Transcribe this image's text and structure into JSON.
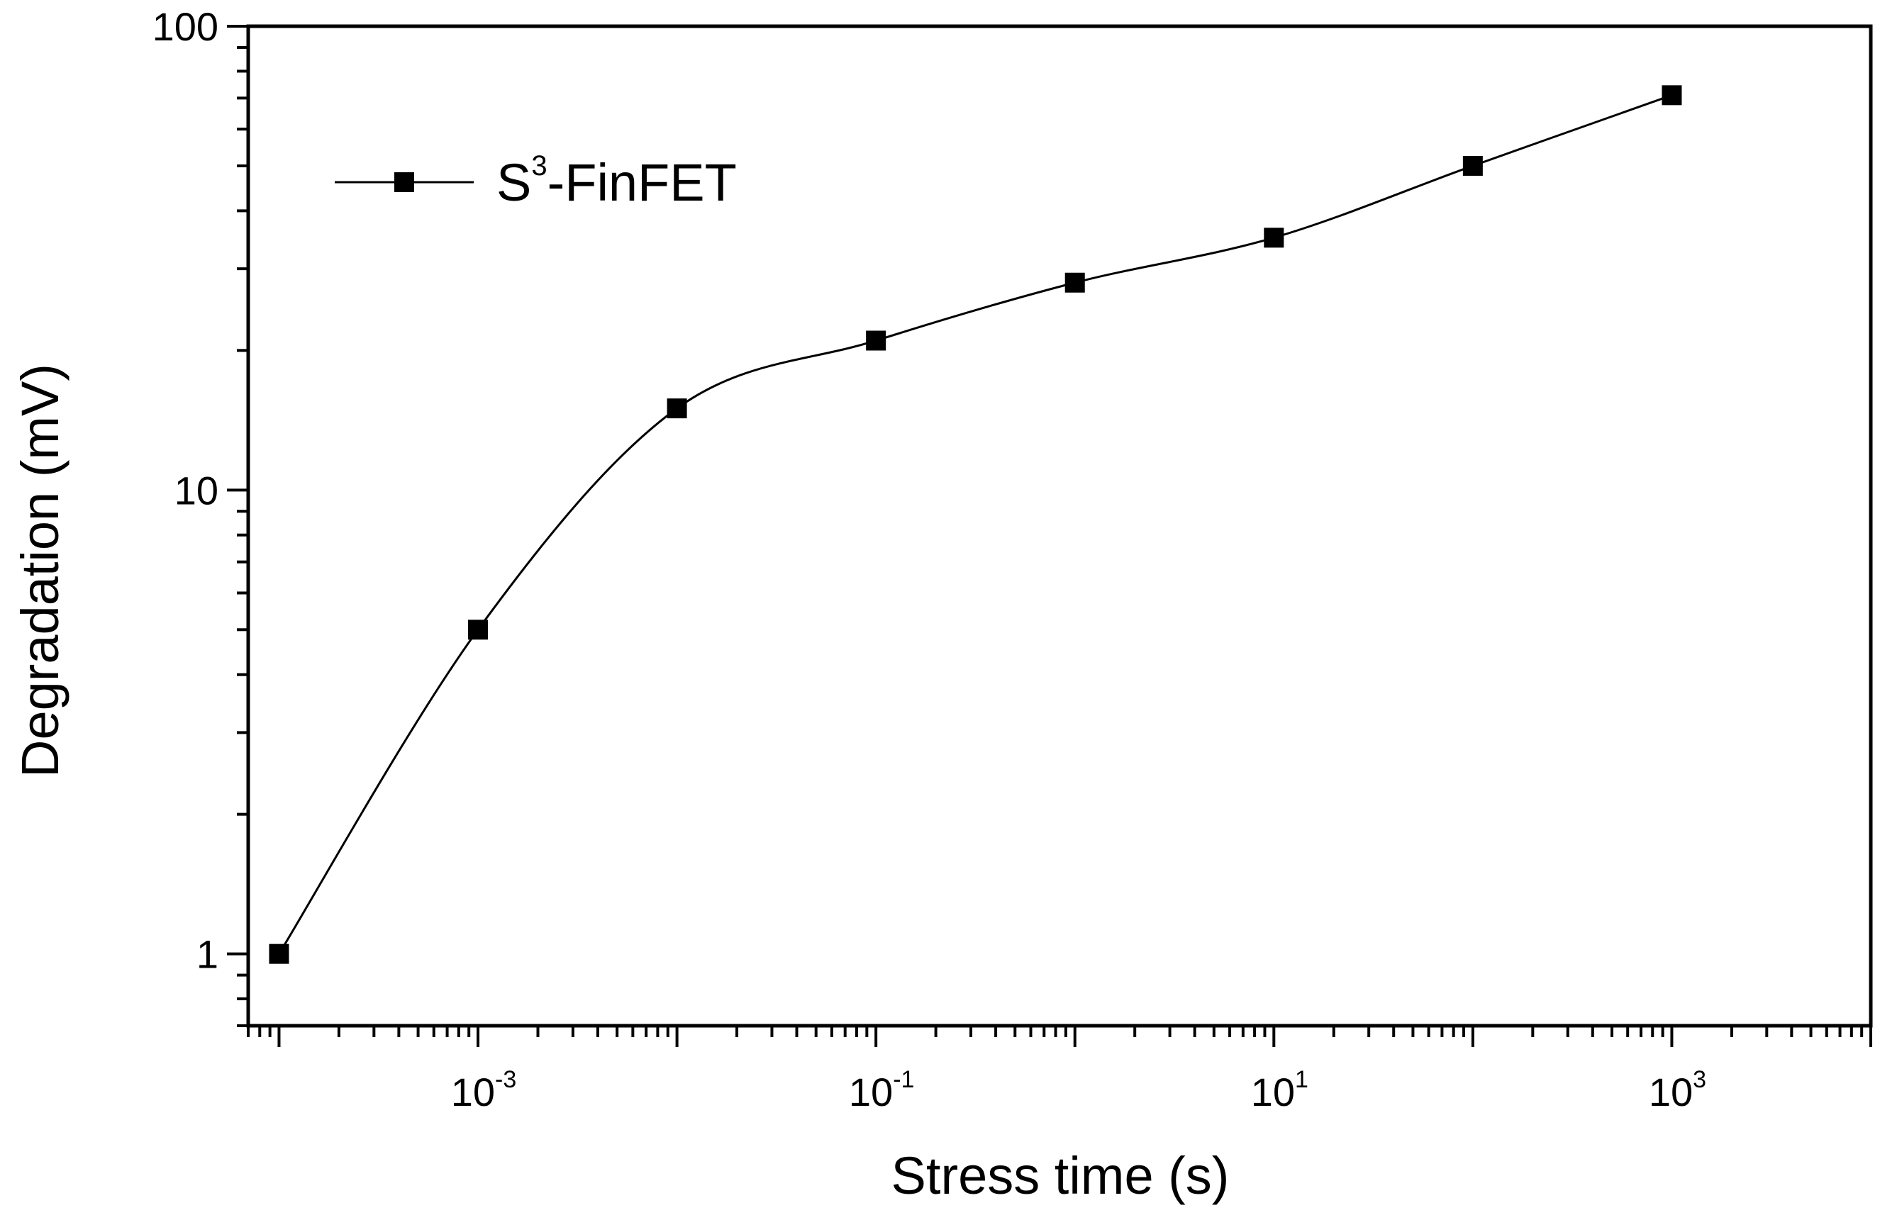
{
  "chart_data": {
    "type": "line",
    "xscale": "log",
    "yscale": "log",
    "xlim": [
      7e-05,
      10000
    ],
    "ylim": [
      0.7,
      100
    ],
    "xlabel": "Stress time (s)",
    "ylabel": "Degradation (mV)",
    "x_ticks": [
      {
        "base": "10",
        "exp": "-3",
        "value": 0.001
      },
      {
        "base": "10",
        "exp": "-1",
        "value": 0.1
      },
      {
        "base": "10",
        "exp": "1",
        "value": 10
      },
      {
        "base": "10",
        "exp": "3",
        "value": 1000
      }
    ],
    "y_ticks": [
      {
        "label": "1",
        "value": 1
      },
      {
        "label": "10",
        "value": 10
      },
      {
        "label": "100",
        "value": 100
      }
    ],
    "legend": {
      "base": "S",
      "sup": "3",
      "suffix": "-FinFET",
      "position": "top-left"
    },
    "series": [
      {
        "name": "S3-FinFET",
        "marker": "square",
        "color": "#000000",
        "x": [
          0.0001,
          0.001,
          0.01,
          0.1,
          1,
          10,
          100,
          1000
        ],
        "values": [
          1.0,
          5.0,
          15.0,
          21.0,
          28.0,
          35.0,
          50.0,
          71.0
        ]
      }
    ]
  }
}
